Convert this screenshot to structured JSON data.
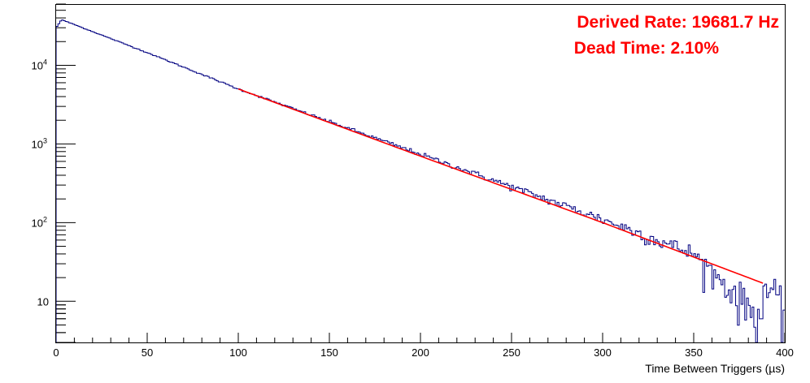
{
  "chart_data": {
    "type": "line",
    "title": "",
    "xlabel": "Time Between Triggers (µs)",
    "ylabel": "",
    "xlim": [
      0,
      400
    ],
    "ylim": [
      3,
      60000
    ],
    "y_scale": "log",
    "grid": false,
    "x_ticks": [
      "0",
      "50",
      "100",
      "150",
      "200",
      "250",
      "300",
      "350",
      "400"
    ],
    "y_ticks": [
      {
        "value": 10,
        "base": "10",
        "exp": ""
      },
      {
        "value": 100,
        "base": "10",
        "exp": "2"
      },
      {
        "value": 1000,
        "base": "10",
        "exp": "3"
      },
      {
        "value": 10000,
        "base": "10",
        "exp": "4"
      }
    ],
    "series": [
      {
        "kind": "histogram",
        "color": "#000080",
        "bin_width_us": 1,
        "x": [
          0,
          3,
          50,
          100,
          200,
          300,
          350,
          387,
          389,
          391,
          395,
          398,
          400
        ],
        "values": [
          30000,
          38000,
          14500,
          5000,
          740,
          110,
          40,
          6,
          20,
          11,
          12,
          8,
          8
        ]
      },
      {
        "kind": "fit",
        "color": "#ff0000",
        "x_range": [
          100,
          388
        ],
        "x": [
          100,
          200,
          300,
          388
        ],
        "values": [
          5000,
          700,
          100,
          17
        ]
      }
    ],
    "annotations": [
      {
        "text": "Derived Rate: 19681.7 Hz",
        "color": "#ff0000"
      },
      {
        "text": "Dead Time: 2.10%",
        "color": "#ff0000"
      }
    ]
  }
}
